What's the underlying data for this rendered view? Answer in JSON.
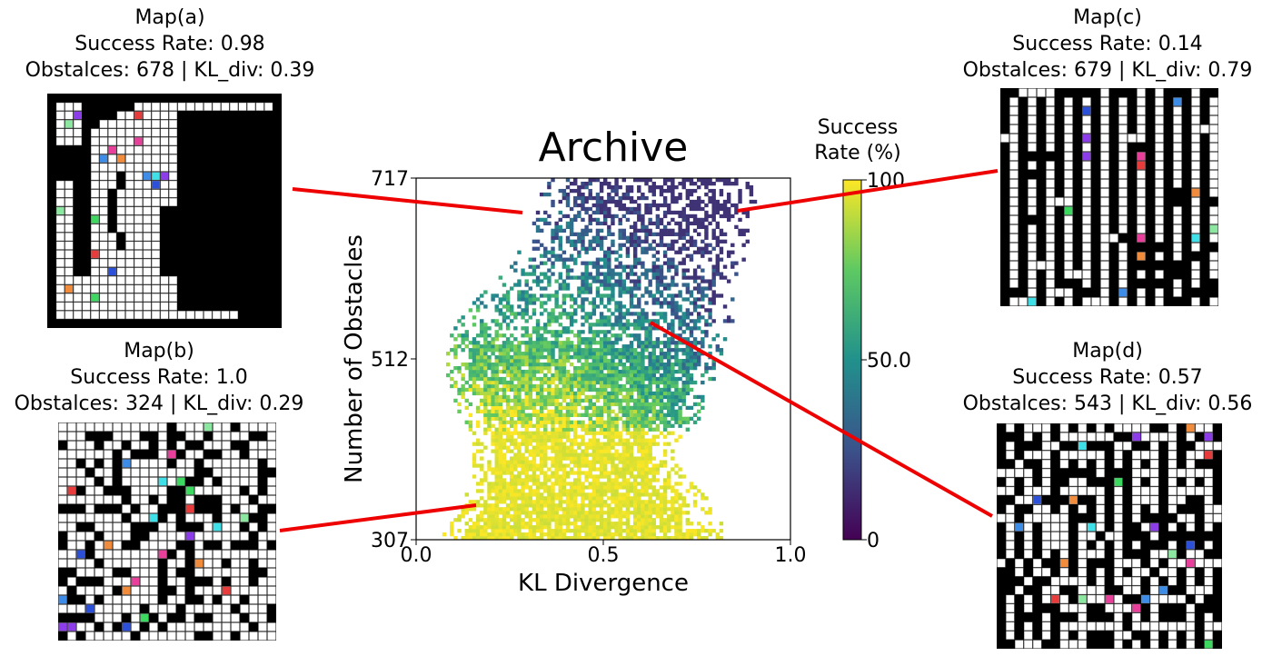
{
  "chart_data": {
    "type": "heatmap",
    "title": "Archive",
    "xlabel": "KL Divergence",
    "ylabel": "Number of Obstacles",
    "xlim": [
      0.0,
      1.0
    ],
    "ylim": [
      307,
      717
    ],
    "x_ticks": [
      "0.0",
      "0.5",
      "1.0"
    ],
    "y_ticks": [
      "307",
      "512",
      "717"
    ],
    "colorbar": {
      "label_line1": "Success",
      "label_line2": "Rate (%)",
      "range": [
        0,
        100
      ],
      "ticks": [
        "0",
        "50.0",
        "100"
      ],
      "colormap": "viridis"
    },
    "description_trend": "Success rate is ~100% at low obstacle counts and decreases toward ~15-40% at high obstacle counts / high KL divergence",
    "maps": [
      {
        "id": "a",
        "name": "Map(a)",
        "success_rate": 0.98,
        "success_label": "Success Rate: 0.98",
        "obstacles": 678,
        "kl_div": 0.39,
        "stats_label": "Obstalces: 678 | KL_div: 0.39",
        "archive_point": {
          "kl": 0.28,
          "obstacles": 677
        }
      },
      {
        "id": "b",
        "name": "Map(b)",
        "success_rate": 1.0,
        "success_label": "Success Rate: 1.0",
        "obstacles": 324,
        "kl_div": 0.29,
        "stats_label": "Obstalces: 324 | KL_div: 0.29",
        "archive_point": {
          "kl": 0.15,
          "obstacles": 345
        }
      },
      {
        "id": "c",
        "name": "Map(c)",
        "success_rate": 0.14,
        "success_label": "Success Rate: 0.14",
        "obstacles": 679,
        "kl_div": 0.79,
        "stats_label": "Obstalces: 679 | KL_div: 0.79",
        "archive_point": {
          "kl": 0.86,
          "obstacles": 679
        }
      },
      {
        "id": "d",
        "name": "Map(d)",
        "success_rate": 0.57,
        "success_label": "Success Rate: 0.57",
        "obstacles": 543,
        "kl_div": 0.56,
        "stats_label": "Obstalces: 543 | KL_div: 0.56",
        "archive_point": {
          "kl": 0.63,
          "obstacles": 550
        }
      }
    ]
  },
  "colors": {
    "connector": "#ee0000",
    "obstacle": "#000000",
    "free": "#ffffff",
    "grid_line": "#888888",
    "markers": [
      "#e8409a",
      "#f08c3c",
      "#3c8ce8",
      "#8c3ce8",
      "#40e0e8",
      "#3cd860",
      "#e83c3c",
      "#2c50d8",
      "#8ce8a0"
    ]
  }
}
